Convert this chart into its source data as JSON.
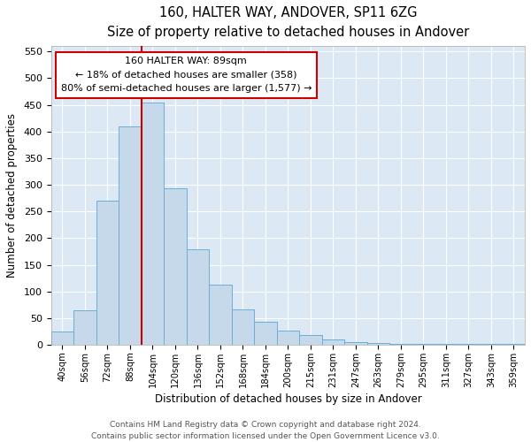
{
  "title": "160, HALTER WAY, ANDOVER, SP11 6ZG",
  "subtitle": "Size of property relative to detached houses in Andover",
  "xlabel": "Distribution of detached houses by size in Andover",
  "ylabel": "Number of detached properties",
  "bar_labels": [
    "40sqm",
    "56sqm",
    "72sqm",
    "88sqm",
    "104sqm",
    "120sqm",
    "136sqm",
    "152sqm",
    "168sqm",
    "184sqm",
    "200sqm",
    "215sqm",
    "231sqm",
    "247sqm",
    "263sqm",
    "279sqm",
    "295sqm",
    "311sqm",
    "327sqm",
    "343sqm",
    "359sqm"
  ],
  "bar_values": [
    25,
    65,
    270,
    410,
    455,
    293,
    180,
    113,
    67,
    44,
    27,
    18,
    10,
    5,
    3,
    2,
    1,
    1,
    1,
    1,
    1
  ],
  "bar_color": "#c5d9ea",
  "bar_edge_color": "#6aaed6",
  "vline_color": "#cc0000",
  "annotation_title": "160 HALTER WAY: 89sqm",
  "annotation_line1": "← 18% of detached houses are smaller (358)",
  "annotation_line2": "80% of semi-detached houses are larger (1,577) →",
  "annotation_box_color": "#ffffff",
  "annotation_box_edge": "#cc0000",
  "ylim": [
    0,
    560
  ],
  "yticks": [
    0,
    50,
    100,
    150,
    200,
    250,
    300,
    350,
    400,
    450,
    500,
    550
  ],
  "footer1": "Contains HM Land Registry data © Crown copyright and database right 2024.",
  "footer2": "Contains public sector information licensed under the Open Government Licence v3.0.",
  "bg_color": "#ffffff",
  "plot_bg_color": "#dce9f5",
  "grid_color": "#ffffff"
}
